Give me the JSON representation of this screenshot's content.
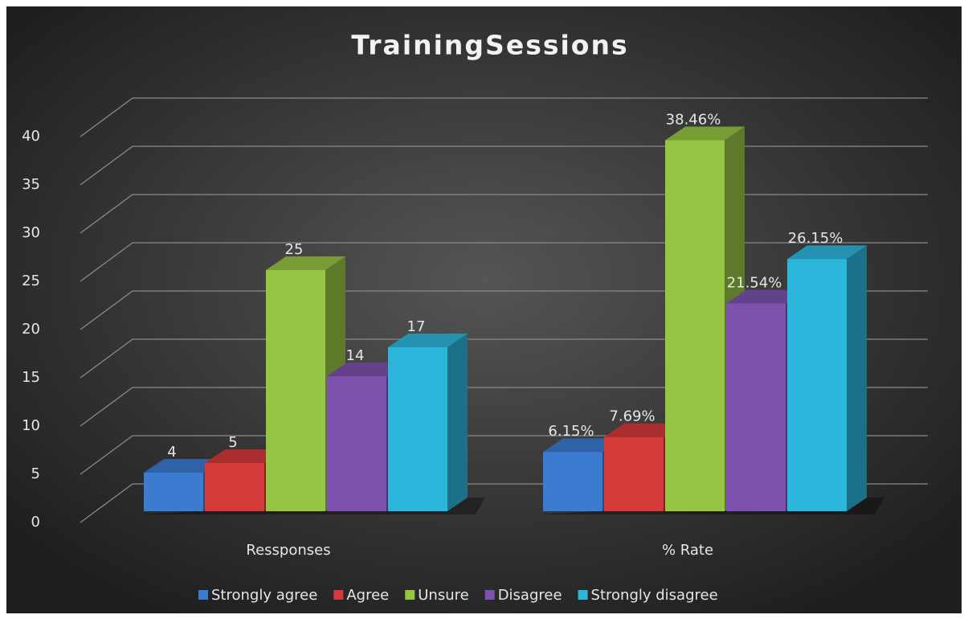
{
  "chart_data": {
    "type": "bar3d",
    "title": "TrainingSessions",
    "categories": [
      "Ressponses",
      "% Rate"
    ],
    "series": [
      {
        "name": "Strongly agree",
        "color": "#3b7bd0",
        "values": [
          4,
          6.15
        ],
        "value_labels": [
          "4",
          "6.15%"
        ]
      },
      {
        "name": "Agree",
        "color": "#d53a3a",
        "values": [
          5,
          7.69
        ],
        "value_labels": [
          "5",
          "7.69%"
        ]
      },
      {
        "name": "Unsure",
        "color": "#96c443",
        "values": [
          25,
          38.46
        ],
        "value_labels": [
          "25",
          "38.46%"
        ]
      },
      {
        "name": "Disagree",
        "color": "#7d52ae",
        "values": [
          14,
          21.54
        ],
        "value_labels": [
          "14",
          "21.54%"
        ]
      },
      {
        "name": "Strongly disagree",
        "color": "#2db6dc",
        "values": [
          17,
          26.15
        ],
        "value_labels": [
          "17",
          "26.15%"
        ]
      }
    ],
    "ylim": [
      0,
      40
    ],
    "yticks": [
      0,
      5,
      10,
      15,
      20,
      25,
      30,
      35,
      40
    ],
    "grid": true,
    "legend": "bottom"
  }
}
